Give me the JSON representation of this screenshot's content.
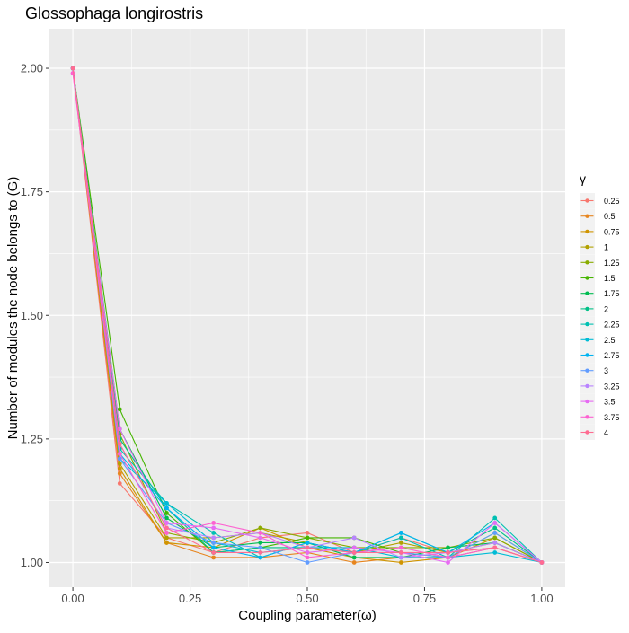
{
  "chart_data": {
    "type": "line",
    "title": "Glossophaga longirostris",
    "xlabel": "Coupling parameter(ω)",
    "ylabel": "Number of modules the node belongs to (G)",
    "xlim": [
      -0.05,
      1.05
    ],
    "ylim": [
      0.95,
      2.08
    ],
    "xticks": [
      0,
      0.25,
      0.5,
      0.75,
      1.0
    ],
    "xtick_labels": [
      "0.00",
      "0.25",
      "0.50",
      "0.75",
      "1.00"
    ],
    "yticks": [
      1.0,
      1.25,
      1.5,
      1.75,
      2.0
    ],
    "ytick_labels": [
      "1.00",
      "1.25",
      "1.50",
      "1.75",
      "2.00"
    ],
    "grid": true,
    "legend_position": "right",
    "legend_title": "γ",
    "x": [
      0,
      0.1,
      0.2,
      0.3,
      0.4,
      0.5,
      0.6,
      0.7,
      0.8,
      0.9,
      1.0
    ],
    "series": [
      {
        "name": "0.25",
        "color": "#F8766D",
        "values": [
          2.0,
          1.16,
          1.05,
          1.02,
          1.05,
          1.06,
          1.02,
          1.05,
          1.02,
          1.03,
          1.0
        ]
      },
      {
        "name": "0.5",
        "color": "#E7851E",
        "values": [
          2.0,
          1.18,
          1.04,
          1.01,
          1.01,
          1.02,
          1.0,
          1.01,
          1.01,
          1.03,
          1.0
        ]
      },
      {
        "name": "0.75",
        "color": "#D09400",
        "values": [
          2.0,
          1.19,
          1.04,
          1.03,
          1.07,
          1.03,
          1.01,
          1.0,
          1.01,
          1.05,
          1.0
        ]
      },
      {
        "name": "1",
        "color": "#B2A100",
        "values": [
          2.0,
          1.2,
          1.05,
          1.05,
          1.06,
          1.04,
          1.02,
          1.04,
          1.02,
          1.04,
          1.0
        ]
      },
      {
        "name": "1.25",
        "color": "#89AC00",
        "values": [
          2.0,
          1.26,
          1.06,
          1.04,
          1.07,
          1.05,
          1.03,
          1.03,
          1.03,
          1.05,
          1.0
        ]
      },
      {
        "name": "1.5",
        "color": "#45B500",
        "values": [
          2.0,
          1.31,
          1.1,
          1.02,
          1.03,
          1.05,
          1.05,
          1.02,
          1.01,
          1.06,
          1.0
        ]
      },
      {
        "name": "1.75",
        "color": "#00BC51",
        "values": [
          2.0,
          1.27,
          1.09,
          1.03,
          1.04,
          1.04,
          1.01,
          1.01,
          1.03,
          1.04,
          1.0
        ]
      },
      {
        "name": "2",
        "color": "#00C087",
        "values": [
          2.0,
          1.25,
          1.11,
          1.02,
          1.03,
          1.03,
          1.02,
          1.06,
          1.02,
          1.07,
          1.0
        ]
      },
      {
        "name": "2.25",
        "color": "#00C0B2",
        "values": [
          2.0,
          1.23,
          1.12,
          1.06,
          1.01,
          1.04,
          1.02,
          1.05,
          1.01,
          1.09,
          1.0
        ]
      },
      {
        "name": "2.5",
        "color": "#00BCD6",
        "values": [
          2.0,
          1.21,
          1.12,
          1.04,
          1.02,
          1.03,
          1.03,
          1.01,
          1.01,
          1.02,
          1.0
        ]
      },
      {
        "name": "2.75",
        "color": "#00B3F2",
        "values": [
          2.0,
          1.22,
          1.11,
          1.03,
          1.01,
          1.04,
          1.02,
          1.06,
          1.02,
          1.08,
          1.0
        ]
      },
      {
        "name": "3",
        "color": "#619CFF",
        "values": [
          2.0,
          1.21,
          1.08,
          1.04,
          1.03,
          1.0,
          1.02,
          1.02,
          1.01,
          1.06,
          1.0
        ]
      },
      {
        "name": "3.25",
        "color": "#B983FF",
        "values": [
          2.0,
          1.24,
          1.07,
          1.05,
          1.06,
          1.03,
          1.05,
          1.01,
          1.02,
          1.04,
          1.0
        ]
      },
      {
        "name": "3.5",
        "color": "#E76BF3",
        "values": [
          1.99,
          1.27,
          1.08,
          1.07,
          1.05,
          1.02,
          1.03,
          1.02,
          1.0,
          1.08,
          1.0
        ]
      },
      {
        "name": "3.75",
        "color": "#FD61D1",
        "values": [
          1.99,
          1.22,
          1.06,
          1.08,
          1.06,
          1.01,
          1.02,
          1.03,
          1.01,
          1.03,
          1.0
        ]
      },
      {
        "name": "4",
        "color": "#FF6C91",
        "values": [
          2.0,
          1.24,
          1.07,
          1.02,
          1.02,
          1.03,
          1.02,
          1.02,
          1.02,
          1.03,
          1.0
        ]
      }
    ]
  }
}
